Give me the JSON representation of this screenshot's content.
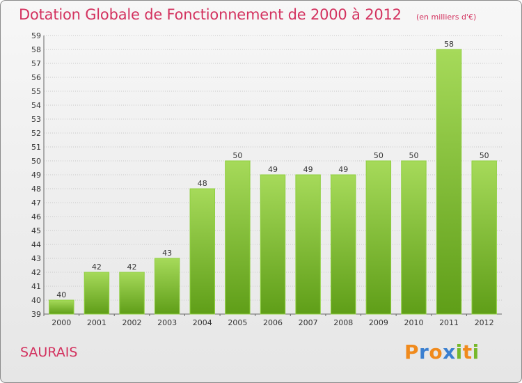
{
  "title": "Dotation Globale de Fonctionnement de 2000 à 2012",
  "subtitle": "(en milliers d'€)",
  "place": "SAURAIS",
  "logo": {
    "letters": [
      "P",
      "r",
      "o",
      "x",
      "i",
      "t",
      "i"
    ],
    "colors": [
      "#f08a1c",
      "#3a7fd0",
      "#f08a1c",
      "#3a7fd0",
      "#76b82a",
      "#f08a1c",
      "#76b82a"
    ]
  },
  "colors": {
    "accent": "#d3325f",
    "bar": "#7cc22b",
    "bar_light": "#a6da5a",
    "bar_dark": "#5f9e18",
    "grid": "#c8c8c8"
  },
  "chart_data": {
    "type": "bar",
    "categories": [
      "2000",
      "2001",
      "2002",
      "2003",
      "2004",
      "2005",
      "2006",
      "2007",
      "2008",
      "2009",
      "2010",
      "2011",
      "2012"
    ],
    "values": [
      40,
      42,
      42,
      43,
      48,
      50,
      49,
      49,
      49,
      50,
      50,
      58,
      50
    ],
    "title": "Dotation Globale de Fonctionnement de 2000 à 2012",
    "subtitle": "(en milliers d'€)",
    "xlabel": "",
    "ylabel": "",
    "ylim": [
      39,
      59
    ],
    "yticks": [
      39,
      40,
      41,
      42,
      43,
      44,
      45,
      46,
      47,
      48,
      49,
      50,
      51,
      52,
      53,
      54,
      55,
      56,
      57,
      58,
      59
    ],
    "grid": true,
    "data_labels": true
  }
}
